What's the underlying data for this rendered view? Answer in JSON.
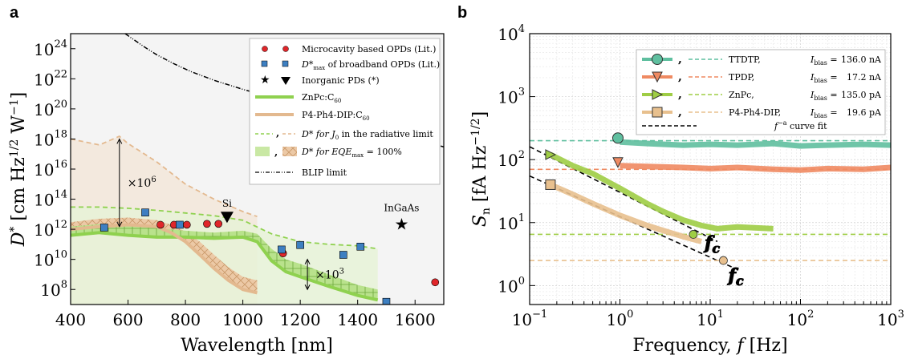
{
  "panel_a_label": "a",
  "panel_b_label": "b",
  "chart_data": [
    {
      "panel": "a",
      "type": "scatter",
      "xlabel": "Wavelength [nm]",
      "ylabel": "D* [cm Hz^1/2 W^-1]",
      "xlim": [
        400,
        1700
      ],
      "ylim": [
        10000000.0,
        1e+25
      ],
      "yscale": "log",
      "xticks": [
        400,
        600,
        800,
        1000,
        1200,
        1400,
        1600
      ],
      "yticks": [
        {
          "v": 100000000.0,
          "base": "10",
          "exp": "8"
        },
        {
          "v": 10000000000.0,
          "base": "10",
          "exp": "10"
        },
        {
          "v": 1000000000000.0,
          "base": "10",
          "exp": "12"
        },
        {
          "v": 100000000000000.0,
          "base": "10",
          "exp": "14"
        },
        {
          "v": 1e+16,
          "base": "10",
          "exp": "16"
        },
        {
          "v": 1e+18,
          "base": "10",
          "exp": "18"
        },
        {
          "v": 1e+20,
          "base": "10",
          "exp": "20"
        },
        {
          "v": 1e+22,
          "base": "10",
          "exp": "22"
        },
        {
          "v": 1e+24,
          "base": "10",
          "exp": "24"
        }
      ],
      "colors": {
        "red": "#e0262a",
        "blue": "#3d7fc1",
        "green": "#8fd14f",
        "tan": "#e3b98f"
      },
      "microcavity_opds": {
        "x": [
          713,
          760,
          805,
          875,
          915,
          1140,
          1670
        ],
        "y": [
          2000000000000.0,
          2000000000000.0,
          2000000000000.0,
          2300000000000.0,
          2300000000000.0,
          25000000000.0,
          300000000.0
        ]
      },
      "broadband_opds_max": {
        "x": [
          517,
          660,
          780,
          1135,
          1200,
          1350,
          1410,
          1500
        ],
        "y": [
          1300000000000.0,
          13000000000000.0,
          2000000000000.0,
          45000000000.0,
          90000000000.0,
          20000000000.0,
          70000000000.0,
          15000000.0
        ]
      },
      "inorganic_pds": [
        {
          "name": "Si",
          "x": 945,
          "y": 7000000000000.0,
          "marker": "triangle-down"
        },
        {
          "name": "InGaAs",
          "x": 1553,
          "y": 2200000000000.0,
          "marker": "star"
        }
      ],
      "znpc_c60": {
        "x": [
          400,
          500,
          600,
          700,
          800,
          900,
          1000,
          1050,
          1100,
          1150,
          1200,
          1300,
          1400,
          1470
        ],
        "y_upper": [
          1500000000000.0,
          2200000000000.0,
          1800000000000.0,
          1200000000000.0,
          800000000000.0,
          600000000000.0,
          800000000000.0,
          500000000000.0,
          50000000000.0,
          10000000000.0,
          5000000000.0,
          1000000000.0,
          200000000.0,
          100000000.0
        ],
        "y_lower": [
          400000000000.0,
          600000000000.0,
          400000000000.0,
          300000000000.0,
          300000000000.0,
          250000000000.0,
          300000000000.0,
          150000000000.0,
          8000000000.0,
          1500000000.0,
          700000000.0,
          160000000.0,
          40000000.0,
          20000000.0
        ]
      },
      "p4ph4dip_c60": {
        "x": [
          400,
          500,
          600,
          700,
          750,
          800,
          850,
          900,
          950,
          1000,
          1050
        ],
        "y_upper": [
          3000000000000.0,
          5000000000000.0,
          6000000000000.0,
          4000000000000.0,
          2000000000000.0,
          700000000000.0,
          150000000000.0,
          20000000000.0,
          3000000000.0,
          700000000.0,
          400000000.0
        ],
        "y_lower": [
          1000000000000.0,
          1500000000000.0,
          2000000000000.0,
          1500000000000.0,
          600000000000.0,
          150000000000.0,
          20000000000.0,
          2500000000.0,
          400000000.0,
          100000000.0,
          60000000.0
        ]
      },
      "radiative_limit_znpc": {
        "x": [
          400,
          500,
          600,
          700,
          800,
          900,
          1000,
          1100,
          1200,
          1300,
          1400,
          1470
        ],
        "y": [
          30000000000000.0,
          30000000000000.0,
          25000000000000.0,
          18000000000000.0,
          12000000000000.0,
          8000000000000.0,
          4000000000000.0,
          500000000000.0,
          150000000000.0,
          100000000000.0,
          80000000000.0,
          50000000000.0
        ]
      },
      "radiative_limit_p4": {
        "x": [
          400,
          500,
          570,
          600,
          700,
          800,
          900,
          1000,
          1050
        ],
        "y": [
          1e+18,
          4e+17,
          1.5e+18,
          5e+17,
          3e+16,
          1000000000000000.0,
          100000000000000.0,
          15000000000000.0,
          7000000000000.0
        ]
      },
      "blip_limit": {
        "x": [
          590,
          620,
          660,
          700,
          760,
          820,
          900,
          1000,
          1100,
          1200,
          1300,
          1400,
          1500,
          1600,
          1700
        ],
        "y": [
          1e+25,
          4e+24,
          1.2e+24,
          4e+23,
          1e+23,
          3e+22,
          8e+21,
          2e+21,
          6e+20,
          2e+20,
          6e+19,
          1e+19,
          3e+18,
          1e+18,
          3e+17
        ]
      },
      "annotations": [
        {
          "text_base": "×10",
          "text_exp": "6",
          "x": 570,
          "y_from": 1e+18,
          "y_to": 1500000000000.0
        },
        {
          "text_base": "×10",
          "text_exp": "3",
          "x": 1225,
          "y_from": 10000000000.0,
          "y_to": 100000000.0
        }
      ],
      "legend": {
        "placement": "top-right",
        "entries": [
          {
            "text": "Microcavity based OPDs (Lit.)"
          },
          {
            "text_pre": "D*",
            "text_sub": "max",
            "text_post": " of broadband OPDs (Lit.)"
          },
          {
            "text": "Inorganic PDs (*)"
          },
          {
            "text": "ZnPc:C",
            "text_sub": "60"
          },
          {
            "text": "P4-Ph4-DIP:C",
            "text_sub": "60"
          },
          {
            "text": "D* for J",
            "text_sub": "0",
            "text_post": " in the radiative limit"
          },
          {
            "text": "D* for EQE",
            "text_sub": "max",
            "text_post": " = 100%"
          },
          {
            "text": "BLIP limit"
          }
        ]
      }
    },
    {
      "panel": "b",
      "type": "line",
      "xlabel": "Frequency, f [Hz]",
      "ylabel": "S_n [fA Hz^-1/2]",
      "xscale": "log",
      "yscale": "log",
      "xlim": [
        0.1,
        1000
      ],
      "ylim": [
        0.5,
        10000
      ],
      "xticks": [
        {
          "v": 0.1,
          "base": "10",
          "exp": "−1"
        },
        {
          "v": 1,
          "base": "10",
          "exp": "0"
        },
        {
          "v": 10,
          "base": "10",
          "exp": "1"
        },
        {
          "v": 100,
          "base": "10",
          "exp": "2"
        },
        {
          "v": 1000,
          "base": "10",
          "exp": "3"
        }
      ],
      "yticks": [
        {
          "v": 1,
          "base": "10",
          "exp": "0"
        },
        {
          "v": 10,
          "base": "10",
          "exp": "1"
        },
        {
          "v": 100,
          "base": "10",
          "exp": "2"
        },
        {
          "v": 1000,
          "base": "10",
          "exp": "3"
        },
        {
          "v": 10000,
          "base": "10",
          "exp": "4"
        }
      ],
      "series": [
        {
          "name": "TTDTP,",
          "i_bias": "136.0 nA",
          "color": "#5fbf9f",
          "marker": "circle",
          "marker_at": {
            "x": 0.95,
            "y": 220
          },
          "shot_level": 200,
          "x": [
            1,
            2,
            5,
            10,
            20,
            50,
            100,
            200,
            500,
            1000
          ],
          "y": [
            190,
            180,
            170,
            175,
            170,
            180,
            165,
            170,
            175,
            170
          ]
        },
        {
          "name": "TPDP,",
          "i_bias": "17.2 nA",
          "color": "#ef8a62",
          "marker": "triangle-down",
          "marker_at": {
            "x": 0.95,
            "y": 90
          },
          "shot_level": 70,
          "x": [
            1,
            2,
            5,
            10,
            20,
            50,
            100,
            200,
            500,
            1000
          ],
          "y": [
            80,
            78,
            75,
            72,
            75,
            70,
            68,
            72,
            70,
            75
          ]
        },
        {
          "name": "ZnPc,",
          "i_bias": "135.0 pA",
          "color": "#9fcd45",
          "marker": "triangle-right",
          "marker_at": {
            "x": 0.17,
            "y": 120
          },
          "shot_level": 6.5,
          "corner_frequency": {
            "x": 6.5,
            "y": 6.5
          },
          "x": [
            0.17,
            0.3,
            0.5,
            1,
            2,
            3,
            5,
            8,
            12,
            20,
            50
          ],
          "y": [
            120,
            80,
            60,
            35,
            20,
            15,
            11,
            9,
            8,
            8.5,
            8
          ]
        },
        {
          "name": "P4-Ph4-DIP,",
          "i_bias": "19.6 pA",
          "color": "#e8c08e",
          "marker": "square",
          "marker_at": {
            "x": 0.17,
            "y": 40
          },
          "shot_level": 2.5,
          "corner_frequency": {
            "x": 14,
            "y": 2.5
          },
          "x": [
            0.17,
            0.3,
            0.5,
            1,
            2,
            3,
            5,
            8
          ],
          "y": [
            40,
            28,
            20,
            13,
            9,
            7.5,
            6,
            5
          ]
        }
      ],
      "fit_curves": [
        {
          "x": [
            0.1,
            12
          ],
          "y": [
            160,
            5
          ]
        },
        {
          "x": [
            0.1,
            20
          ],
          "y": [
            55,
            1.8
          ]
        }
      ],
      "corner_label": "f",
      "corner_label_sub": "c",
      "legend": {
        "placement": "top-right",
        "bias_label": "I",
        "bias_sub": "bias",
        "bias_eq": " = ",
        "fit_text": " curve fit",
        "fit_base": "f",
        "fit_exp": "−a"
      }
    }
  ]
}
